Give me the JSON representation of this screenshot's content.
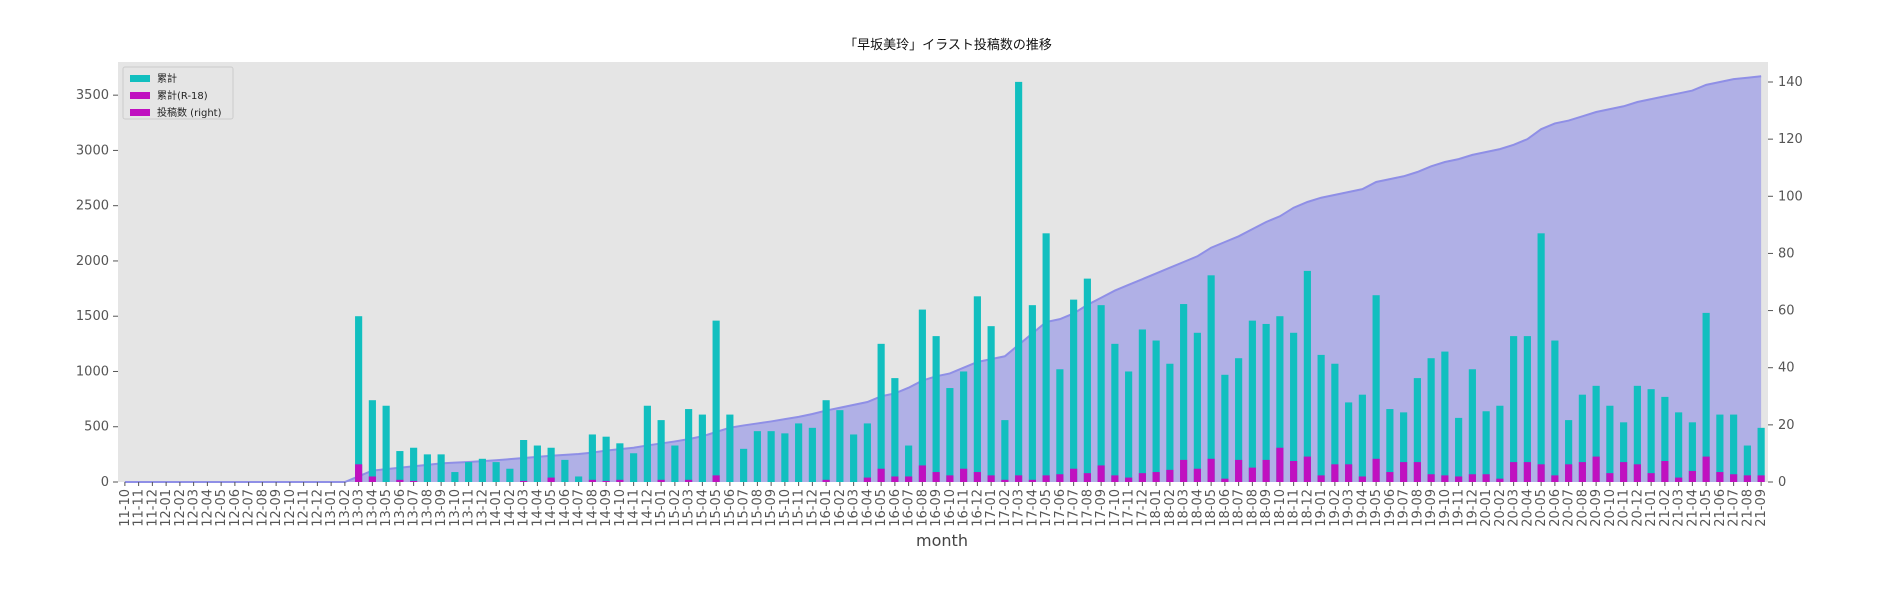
{
  "chart_data": {
    "type": "bar",
    "title": "「早坂美玲」イラスト投稿数の推移",
    "xlabel": "month",
    "ylabel": "",
    "ylim": [
      0,
      3800
    ],
    "y2lim": [
      0,
      147
    ],
    "yticks": [
      0,
      500,
      1000,
      1500,
      2000,
      2500,
      3000,
      3500
    ],
    "y2ticks": [
      0,
      20,
      40,
      60,
      80,
      100,
      120,
      140
    ],
    "grid": false,
    "legend_position": "top-left",
    "categories": [
      "11-10",
      "11-11",
      "11-12",
      "12-01",
      "12-02",
      "12-03",
      "12-04",
      "12-05",
      "12-06",
      "12-07",
      "12-08",
      "12-09",
      "12-10",
      "12-11",
      "12-12",
      "13-01",
      "13-02",
      "13-03",
      "13-04",
      "13-05",
      "13-06",
      "13-07",
      "13-08",
      "13-09",
      "13-10",
      "13-11",
      "13-12",
      "14-01",
      "14-02",
      "14-03",
      "14-04",
      "14-05",
      "14-06",
      "14-07",
      "14-08",
      "14-09",
      "14-10",
      "14-11",
      "14-12",
      "15-01",
      "15-02",
      "15-03",
      "15-04",
      "15-05",
      "15-06",
      "15-07",
      "15-08",
      "15-09",
      "15-10",
      "15-11",
      "15-12",
      "16-01",
      "16-02",
      "16-03",
      "16-04",
      "16-05",
      "16-06",
      "16-07",
      "16-08",
      "16-09",
      "16-10",
      "16-11",
      "16-12",
      "17-01",
      "17-02",
      "17-03",
      "17-04",
      "17-05",
      "17-06",
      "17-07",
      "17-08",
      "17-09",
      "17-10",
      "17-11",
      "17-12",
      "18-01",
      "18-02",
      "18-03",
      "18-04",
      "18-05",
      "18-06",
      "18-07",
      "18-08",
      "18-09",
      "18-10",
      "18-11",
      "18-12",
      "19-01",
      "19-02",
      "19-03",
      "19-04",
      "19-05",
      "19-06",
      "19-07",
      "19-08",
      "19-09",
      "19-10",
      "19-11",
      "19-12",
      "20-01",
      "20-02",
      "20-03",
      "20-04",
      "20-05",
      "20-06",
      "20-07",
      "20-08",
      "20-09",
      "20-10",
      "20-11",
      "20-12",
      "21-01",
      "21-02",
      "21-03",
      "21-04",
      "21-05",
      "21-06",
      "21-07",
      "21-08",
      "21-09"
    ],
    "series": [
      {
        "name": "累計",
        "kind": "bar",
        "axis": "left",
        "color": "#11bfbf",
        "values": [
          0,
          0,
          0,
          0,
          0,
          0,
          0,
          0,
          0,
          0,
          0,
          0,
          0,
          0,
          0,
          0,
          0,
          1500,
          740,
          690,
          280,
          310,
          250,
          250,
          90,
          180,
          210,
          180,
          120,
          380,
          330,
          310,
          200,
          50,
          430,
          410,
          350,
          260,
          690,
          560,
          330,
          660,
          610,
          1460,
          610,
          300,
          460,
          460,
          440,
          530,
          490,
          740,
          650,
          430,
          530,
          1250,
          940,
          330,
          1560,
          1320,
          850,
          1000,
          1680,
          1410,
          560,
          3620,
          1600,
          2250,
          1020,
          1650,
          1840,
          1600,
          1250,
          1000,
          1380,
          1280,
          1070,
          1610,
          1350,
          1870,
          970,
          1120,
          1460,
          1430,
          1500,
          1350,
          1910,
          1150,
          1070,
          720,
          790,
          1690,
          660,
          630,
          940,
          1120,
          1180,
          580,
          1020,
          640,
          690,
          1320,
          1320,
          2250,
          1280,
          560,
          790,
          870,
          690,
          540,
          870,
          840,
          770,
          630,
          540,
          1530,
          610,
          610,
          330,
          490
        ]
      },
      {
        "name": "累計(R-18)",
        "kind": "bar",
        "axis": "left",
        "color": "#c010c0",
        "values": [
          0,
          0,
          0,
          0,
          0,
          0,
          0,
          0,
          0,
          0,
          0,
          0,
          0,
          0,
          0,
          0,
          0,
          160,
          50,
          0,
          20,
          10,
          0,
          0,
          0,
          0,
          0,
          0,
          0,
          10,
          0,
          40,
          0,
          0,
          20,
          10,
          20,
          0,
          0,
          20,
          0,
          20,
          0,
          60,
          0,
          0,
          0,
          0,
          0,
          0,
          0,
          20,
          0,
          0,
          40,
          120,
          50,
          50,
          150,
          90,
          60,
          120,
          90,
          60,
          20,
          60,
          20,
          60,
          70,
          120,
          80,
          150,
          60,
          40,
          80,
          90,
          110,
          200,
          120,
          210,
          30,
          200,
          130,
          200,
          310,
          190,
          230,
          60,
          160,
          160,
          50,
          210,
          90,
          180,
          180,
          70,
          60,
          50,
          70,
          70,
          30,
          180,
          180,
          160,
          60,
          160,
          180,
          230,
          80,
          180,
          160,
          80,
          190,
          40,
          100,
          230,
          90,
          70,
          60,
          60
        ]
      },
      {
        "name": "投稿数 (right)",
        "kind": "area",
        "axis": "right",
        "color": "#8f8fe6",
        "values": [
          0,
          0,
          0,
          0,
          0,
          0,
          0,
          0,
          0,
          0,
          0,
          0,
          0,
          0,
          0,
          0,
          0,
          2,
          4,
          4.5,
          5,
          5.5,
          6,
          6.5,
          6.8,
          7,
          7.3,
          7.6,
          8,
          8.4,
          8.8,
          9.2,
          9.5,
          9.8,
          10.3,
          11,
          11.5,
          12,
          12.8,
          13.5,
          14.2,
          15,
          16,
          17.5,
          19,
          19.8,
          20.5,
          21.2,
          22,
          22.8,
          23.8,
          25,
          26,
          27,
          28,
          30,
          31,
          33,
          35.5,
          37,
          38,
          40,
          42,
          43,
          44,
          48,
          52,
          56,
          57,
          59,
          62,
          64.5,
          67,
          69,
          71,
          73,
          75,
          77,
          79,
          82,
          84,
          86,
          88.5,
          91,
          93,
          96,
          98,
          99.5,
          100.5,
          101.5,
          102.5,
          105,
          106,
          107,
          108.5,
          110.5,
          112,
          113,
          114.5,
          115.5,
          116.5,
          118,
          120,
          123.5,
          125.5,
          126.5,
          128,
          129.5,
          130.5,
          131.5,
          133,
          134,
          135,
          136,
          137,
          139,
          140,
          141,
          141.5,
          142
        ]
      }
    ]
  }
}
